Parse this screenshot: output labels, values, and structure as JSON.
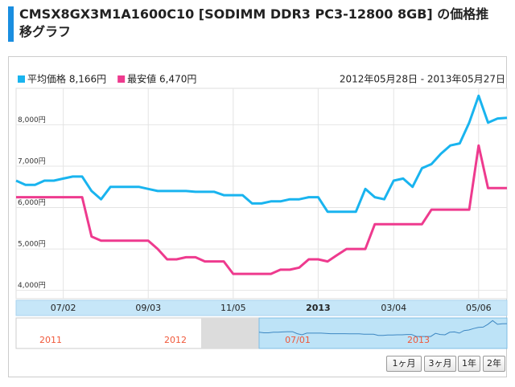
{
  "header": {
    "title": "CMSX8GX3M1A1600C10 [SODIMM DDR3 PC3-12800 8GB] の価格推移グラフ"
  },
  "chart_data": {
    "type": "line",
    "subtitle": "2012年05月28日 - 2013年05月27日",
    "categories": [
      null,
      null,
      null,
      null,
      null,
      "07/02",
      null,
      null,
      null,
      null,
      null,
      null,
      null,
      null,
      "09/03",
      null,
      null,
      null,
      null,
      null,
      null,
      null,
      null,
      "11/05",
      null,
      null,
      null,
      null,
      null,
      null,
      null,
      null,
      "2013",
      null,
      null,
      null,
      null,
      null,
      null,
      null,
      "03/04",
      null,
      null,
      null,
      null,
      null,
      null,
      null,
      null,
      "05/06",
      null,
      null,
      null
    ],
    "series": [
      {
        "name": "平均価格 8,166円",
        "color": "#19b4ef",
        "values": [
          6650,
          6550,
          6550,
          6650,
          6650,
          6700,
          6750,
          6750,
          6400,
          6200,
          6500,
          6500,
          6500,
          6500,
          6450,
          6400,
          6400,
          6400,
          6400,
          6380,
          6380,
          6380,
          6300,
          6300,
          6300,
          6100,
          6100,
          6150,
          6150,
          6200,
          6200,
          6250,
          6250,
          5900,
          5900,
          5900,
          5900,
          6450,
          6250,
          6200,
          6650,
          6700,
          6500,
          6950,
          7050,
          7300,
          7500,
          7550,
          8050,
          8700,
          8050,
          8150,
          8166
        ]
      },
      {
        "name": "最安値 6,470円",
        "color": "#ee3a8e",
        "values": [
          6250,
          6250,
          6250,
          6250,
          6250,
          6250,
          6250,
          6250,
          5300,
          5200,
          5200,
          5200,
          5200,
          5200,
          5200,
          5000,
          4750,
          4750,
          4800,
          4800,
          4700,
          4700,
          4700,
          4400,
          4400,
          4400,
          4400,
          4400,
          4500,
          4500,
          4550,
          4750,
          4750,
          4700,
          4850,
          5000,
          5000,
          5000,
          5600,
          5600,
          5600,
          5600,
          5600,
          5600,
          5950,
          5950,
          5950,
          5950,
          5950,
          7500,
          6470,
          6470,
          6470
        ]
      }
    ],
    "ylim": [
      3800,
      8880
    ],
    "yticks": [
      {
        "value": 4000,
        "label": "4,000円"
      },
      {
        "value": 5000,
        "label": "5,000円"
      },
      {
        "value": 6000,
        "label": "6,000円"
      },
      {
        "value": 7000,
        "label": "7,000円"
      },
      {
        "value": 8000,
        "label": "8,000円"
      }
    ],
    "grid": true
  },
  "navigator": {
    "labels": [
      "2011",
      "2012",
      "07/01",
      "2013"
    ]
  },
  "buttons": [
    "1ヶ月",
    "3ヶ月",
    "1年",
    "2年"
  ]
}
